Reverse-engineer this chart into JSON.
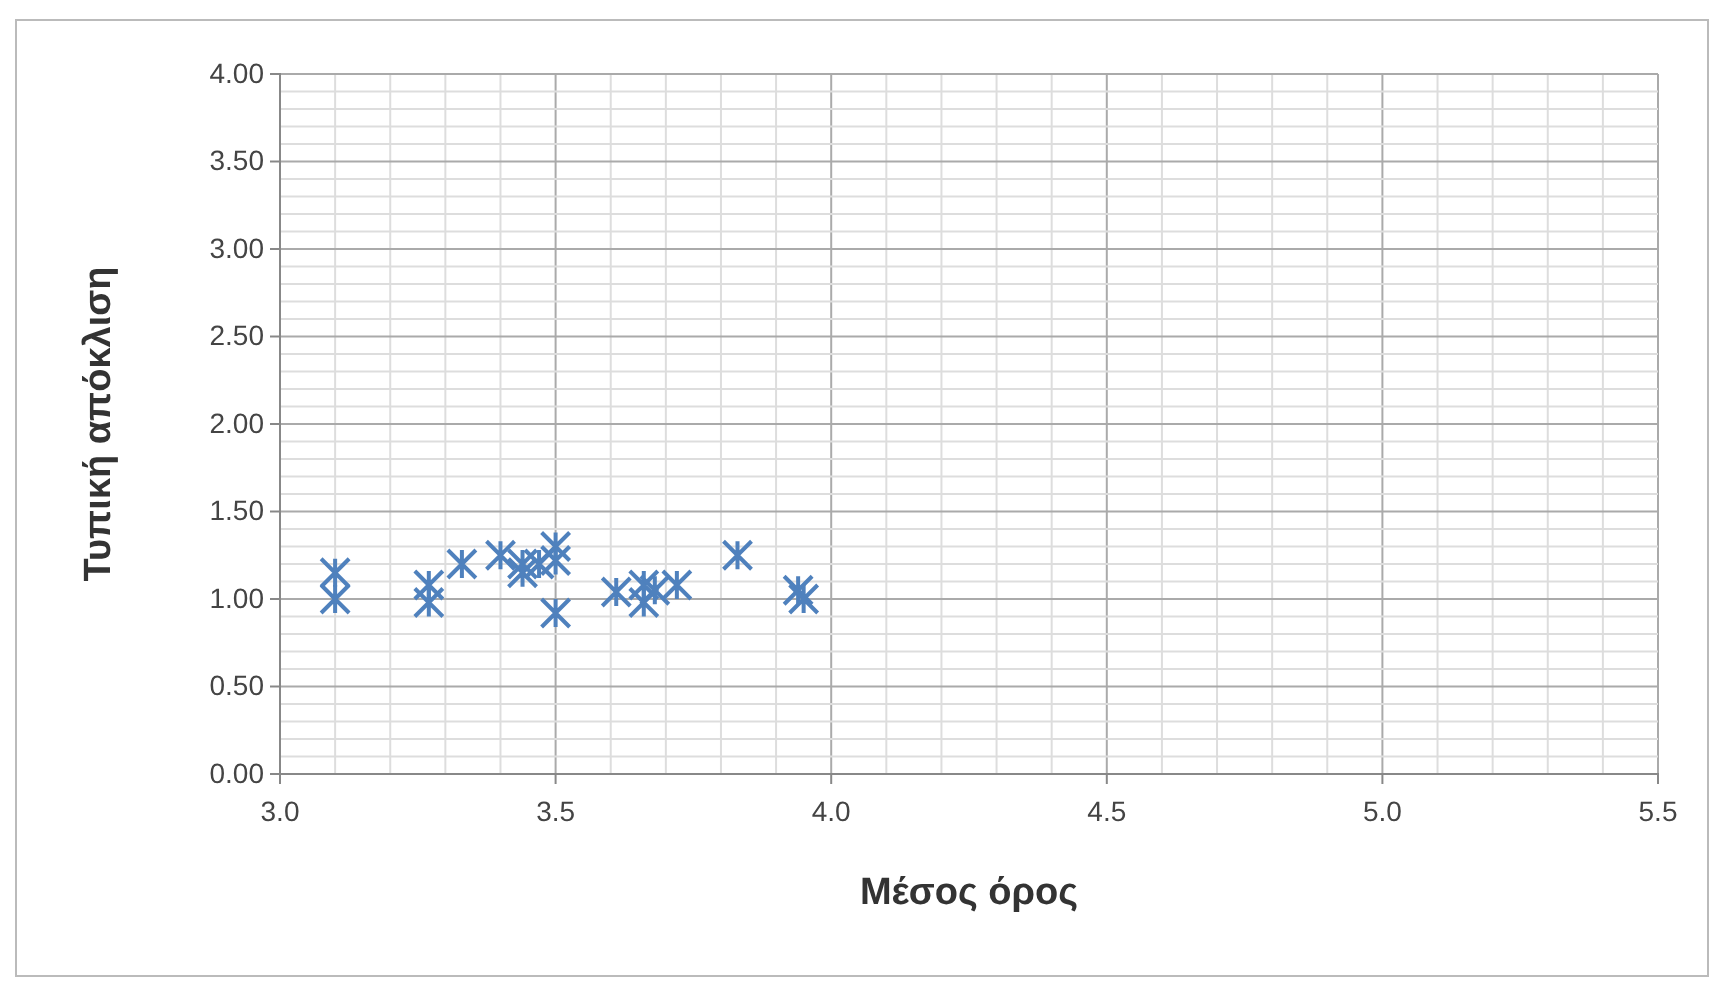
{
  "chart_data": {
    "type": "scatter",
    "xlabel": "Μέσος όρος",
    "ylabel": "Τυπική απόκλιση",
    "x": [
      3.1,
      3.1,
      3.27,
      3.27,
      3.33,
      3.4,
      3.44,
      3.44,
      3.47,
      3.5,
      3.5,
      3.5,
      3.61,
      3.66,
      3.66,
      3.68,
      3.72,
      3.83,
      3.94,
      3.95
    ],
    "values": [
      1.0,
      1.15,
      1.08,
      0.98,
      1.2,
      1.25,
      1.15,
      1.2,
      1.2,
      1.3,
      1.22,
      0.92,
      1.04,
      1.08,
      0.98,
      1.05,
      1.08,
      1.25,
      1.05,
      1.0
    ],
    "color": "#4f81bd",
    "marker": "cross",
    "xlim": [
      3.0,
      5.5
    ],
    "xticks": [
      {
        "value": 3.0,
        "label": "3.0"
      },
      3.5,
      {
        "value": 4.0,
        "label": "4.0"
      },
      4.5,
      {
        "value": 5.0,
        "label": "5.0"
      },
      5.5
    ],
    "ylim": [
      0,
      4
    ],
    "yticks": [
      {
        "value": 0,
        "label": "0.00"
      },
      {
        "value": 0.5,
        "label": "0.50"
      },
      {
        "value": 1,
        "label": "1.00"
      },
      {
        "value": 1.5,
        "label": "1.50"
      },
      {
        "value": 2,
        "label": "2.00"
      },
      {
        "value": 2.5,
        "label": "2.50"
      },
      {
        "value": 3,
        "label": "3.00"
      },
      {
        "value": 3.5,
        "label": "3.50"
      },
      {
        "value": 4,
        "label": "4.00"
      }
    ],
    "grid": true
  }
}
